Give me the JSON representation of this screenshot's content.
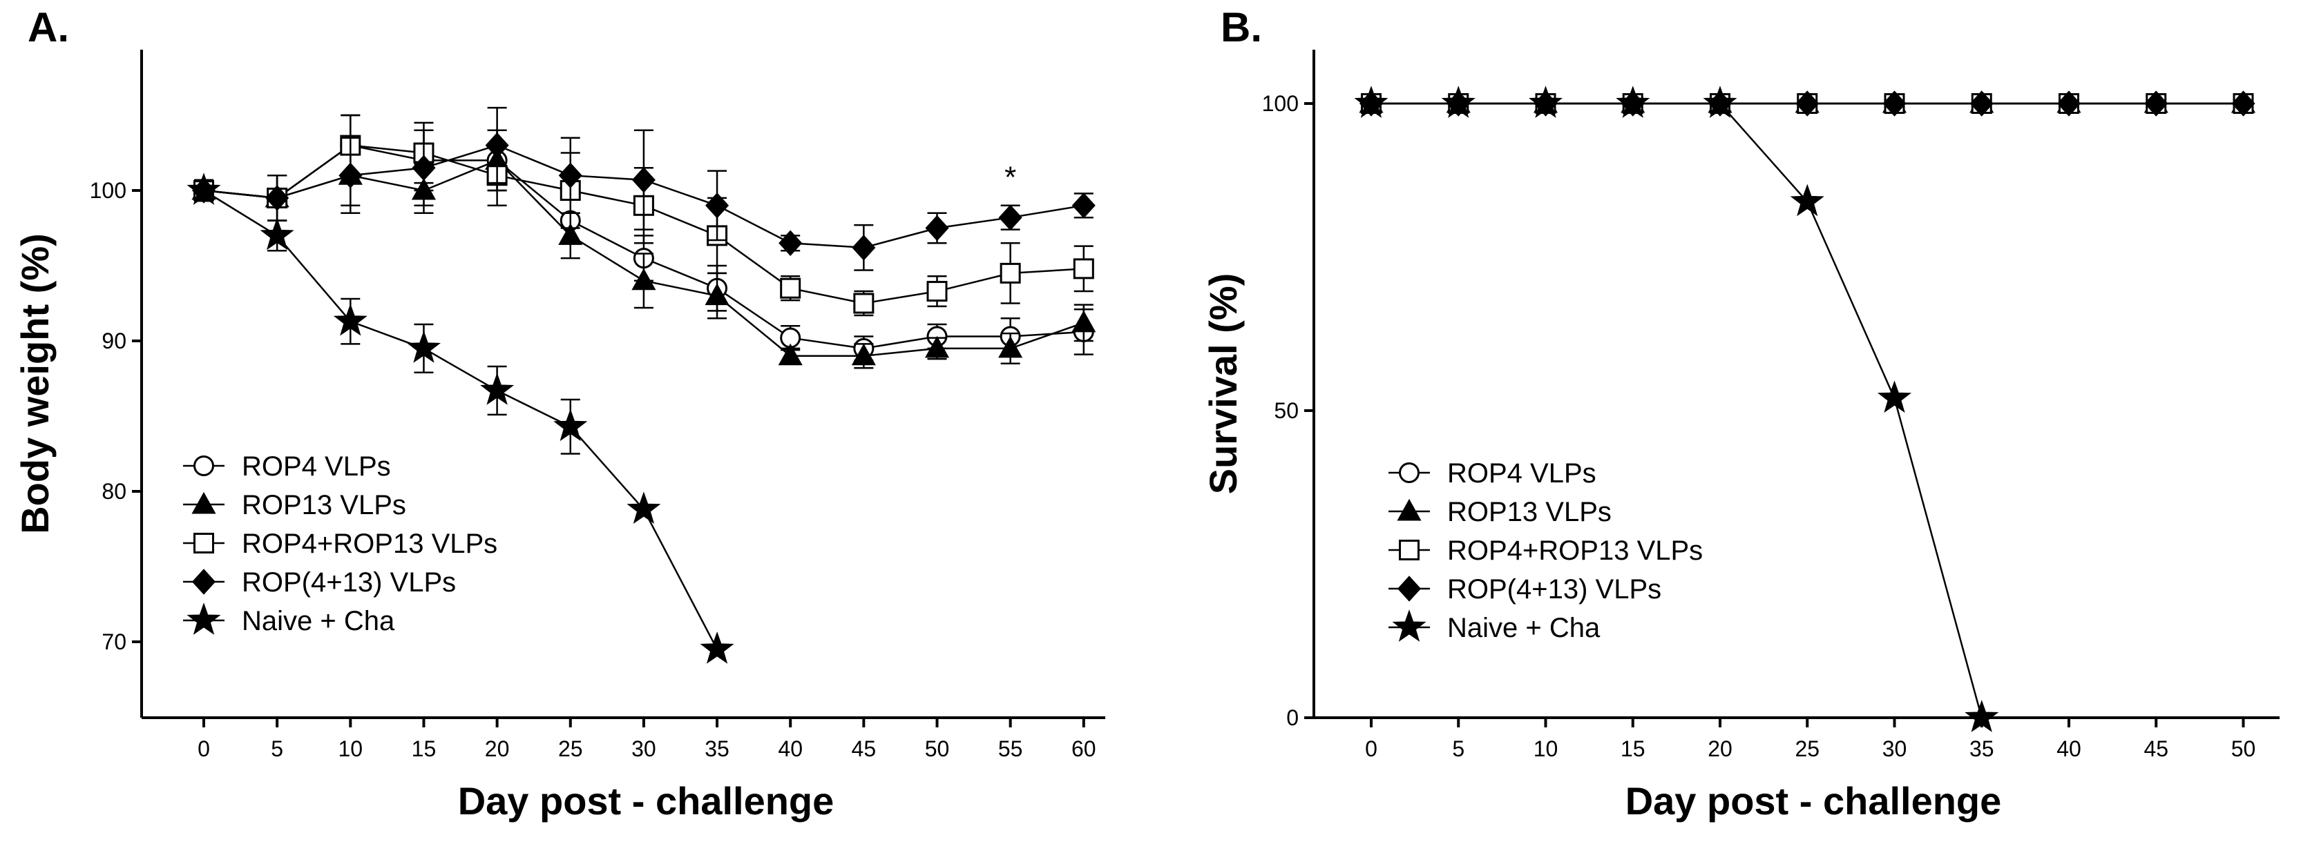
{
  "chart_data": [
    {
      "panel_label": "A.",
      "type": "line",
      "xlabel": "Day post - challenge",
      "ylabel": "Body weight (%)",
      "x_ticks": [
        0,
        5,
        10,
        15,
        20,
        25,
        30,
        35,
        40,
        45,
        50,
        55,
        60
      ],
      "y_ticks": [
        70,
        80,
        90,
        100
      ],
      "xlim": [
        -3,
        62
      ],
      "ylim": [
        66,
        110
      ],
      "annotation": {
        "text": "*",
        "x": 55,
        "y": 100.2
      },
      "legend_position": "bottom-left",
      "series": [
        {
          "name": "ROP4 VLPs",
          "marker": "circle-open",
          "x": [
            0,
            5,
            10,
            15,
            20,
            25,
            30,
            35,
            40,
            45,
            50,
            55,
            60
          ],
          "y": [
            100,
            99.5,
            103,
            102,
            102,
            98,
            95.5,
            93.5,
            90.2,
            89.5,
            90.3,
            90.3,
            90.6
          ],
          "err": [
            0.7,
            1.5,
            2.0,
            2.0,
            2.0,
            1.5,
            1.5,
            1.5,
            0.8,
            0.8,
            0.8,
            1.2,
            1.5
          ]
        },
        {
          "name": "ROP13 VLPs",
          "marker": "triangle-filled",
          "x": [
            0,
            5,
            10,
            15,
            20,
            25,
            30,
            35,
            40,
            45,
            50,
            55,
            60
          ],
          "y": [
            100,
            99.5,
            101,
            100,
            102,
            97,
            94,
            93,
            89,
            89,
            89.5,
            89.5,
            91.2
          ],
          "err": [
            0.7,
            1.5,
            2.0,
            1.5,
            2.0,
            1.5,
            1.8,
            1.5,
            0.5,
            0.8,
            0.7,
            1.0,
            1.2
          ]
        },
        {
          "name": "ROP4+ROP13 VLPs",
          "marker": "square-open",
          "x": [
            0,
            5,
            10,
            15,
            20,
            25,
            30,
            35,
            40,
            45,
            50,
            55,
            60
          ],
          "y": [
            100,
            99.5,
            103,
            102.5,
            101,
            100,
            99,
            97,
            93.5,
            92.5,
            93.3,
            94.5,
            94.8
          ],
          "err": [
            0.7,
            1.5,
            2.0,
            2.0,
            2.0,
            2.5,
            2.5,
            2.5,
            0.8,
            0.8,
            1.0,
            2.0,
            1.5
          ]
        },
        {
          "name": "ROP(4+13) VLPs",
          "marker": "diamond-filled",
          "x": [
            0,
            5,
            10,
            15,
            20,
            25,
            30,
            35,
            40,
            45,
            50,
            55,
            60
          ],
          "y": [
            100,
            99.5,
            101,
            101.5,
            103,
            101,
            100.7,
            99,
            96.5,
            96.2,
            97.5,
            98.2,
            99
          ],
          "err": [
            0.7,
            1.5,
            2.5,
            2.5,
            2.5,
            2.5,
            3.3,
            2.3,
            0.5,
            1.5,
            1.0,
            0.8,
            0.8
          ]
        },
        {
          "name": "Naive + Cha",
          "marker": "star-filled",
          "x": [
            0,
            5,
            10,
            15,
            20,
            25,
            30,
            35
          ],
          "y": [
            100,
            97,
            91.3,
            89.5,
            86.7,
            84.3,
            78.8,
            69.5
          ],
          "err": [
            0.6,
            1.0,
            1.5,
            1.6,
            1.6,
            1.8,
            0,
            0
          ]
        }
      ]
    },
    {
      "panel_label": "B.",
      "type": "line",
      "xlabel": "Day post - challenge",
      "ylabel": "Survival (%)",
      "x_ticks": [
        0,
        5,
        10,
        15,
        20,
        25,
        30,
        35,
        40,
        45,
        50
      ],
      "y_ticks": [
        0,
        50,
        100
      ],
      "xlim": [
        -3,
        52
      ],
      "ylim": [
        0,
        108
      ],
      "legend_position": "bottom-left",
      "series": [
        {
          "name": "ROP4 VLPs",
          "marker": "circle-open",
          "x": [
            0,
            5,
            10,
            15,
            20,
            25,
            30,
            35,
            40,
            45,
            50
          ],
          "y": [
            100,
            100,
            100,
            100,
            100,
            100,
            100,
            100,
            100,
            100,
            100
          ]
        },
        {
          "name": "ROP13 VLPs",
          "marker": "triangle-filled",
          "x": [
            0,
            5,
            10,
            15,
            20,
            25,
            30,
            35,
            40,
            45,
            50
          ],
          "y": [
            100,
            100,
            100,
            100,
            100,
            100,
            100,
            100,
            100,
            100,
            100
          ]
        },
        {
          "name": "ROP4+ROP13 VLPs",
          "marker": "square-open",
          "x": [
            0,
            5,
            10,
            15,
            20,
            25,
            30,
            35,
            40,
            45,
            50
          ],
          "y": [
            100,
            100,
            100,
            100,
            100,
            100,
            100,
            100,
            100,
            100,
            100
          ]
        },
        {
          "name": "ROP(4+13) VLPs",
          "marker": "diamond-filled",
          "x": [
            0,
            5,
            10,
            15,
            20,
            25,
            30,
            35,
            40,
            45,
            50
          ],
          "y": [
            100,
            100,
            100,
            100,
            100,
            100,
            100,
            100,
            100,
            100,
            100
          ]
        },
        {
          "name": "Naive + Cha",
          "marker": "star-filled",
          "x": [
            0,
            5,
            10,
            15,
            20,
            25,
            30,
            35
          ],
          "y": [
            100,
            100,
            100,
            100,
            100,
            84,
            52,
            0
          ]
        }
      ]
    }
  ]
}
